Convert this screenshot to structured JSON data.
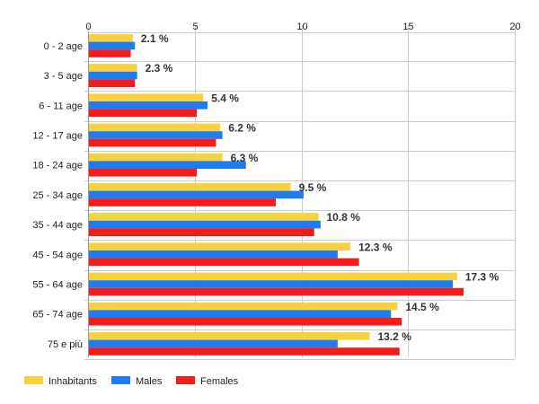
{
  "chart_data": {
    "type": "bar",
    "orientation": "horizontal",
    "title": "",
    "xlabel": "",
    "ylabel": "",
    "xlim": [
      0,
      20
    ],
    "x_ticks": [
      0,
      5,
      10,
      15,
      20
    ],
    "x_axis_position": "top",
    "grid": true,
    "legend_position": "bottom-left",
    "categories": [
      "0 - 2 age",
      "3 - 5 age",
      "6 - 11 age",
      "12 - 17 age",
      "18 - 24 age",
      "25 - 34 age",
      "35 - 44 age",
      "45 - 54 age",
      "55 - 64 age",
      "65 - 74 age",
      "75 e più"
    ],
    "series": [
      {
        "name": "Inhabitants",
        "color": "#f7d23e",
        "values": [
          2.1,
          2.3,
          5.4,
          6.2,
          6.3,
          9.5,
          10.8,
          12.3,
          17.3,
          14.5,
          13.2
        ]
      },
      {
        "name": "Males",
        "color": "#1e7bf0",
        "values": [
          2.2,
          2.3,
          5.6,
          6.3,
          7.4,
          10.1,
          10.9,
          11.7,
          17.1,
          14.2,
          11.7
        ]
      },
      {
        "name": "Females",
        "color": "#f41b1b",
        "values": [
          2.0,
          2.2,
          5.1,
          6.0,
          5.1,
          8.8,
          10.6,
          12.7,
          17.6,
          14.7,
          14.6
        ]
      }
    ],
    "data_labels": [
      "2.1 %",
      "2.3 %",
      "5.4 %",
      "6.2 %",
      "6.3 %",
      "9.5 %",
      "10.8 %",
      "12.3 %",
      "17.3 %",
      "14.5 %",
      "13.2 %"
    ]
  }
}
